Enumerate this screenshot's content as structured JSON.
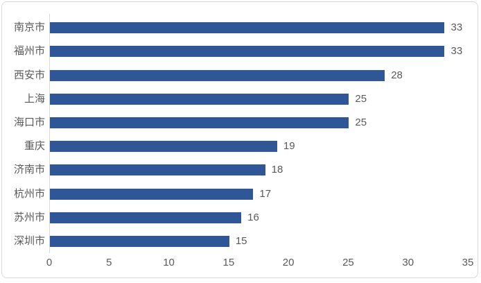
{
  "chart_data": {
    "type": "bar",
    "orientation": "horizontal",
    "title": "",
    "xlabel": "",
    "ylabel": "",
    "categories": [
      "南京市",
      "福州市",
      "西安市",
      "上海",
      "海口市",
      "重庆",
      "济南市",
      "杭州市",
      "苏州市",
      "深圳市"
    ],
    "values": [
      33,
      33,
      28,
      25,
      25,
      19,
      18,
      17,
      16,
      15
    ],
    "data_labels": [
      "33",
      "33",
      "28",
      "25",
      "25",
      "19",
      "18",
      "17",
      "16",
      "15"
    ],
    "x_ticks": [
      "0",
      "5",
      "10",
      "15",
      "20",
      "25",
      "30",
      "35"
    ],
    "x_tick_values": [
      0,
      5,
      10,
      15,
      20,
      25,
      30,
      35
    ],
    "xlim": [
      0,
      35
    ],
    "grid": false,
    "legend": "none",
    "colors": {
      "bar": "#2f5797",
      "text": "#595959",
      "axis_line": "#d9d9d9",
      "frame_border": "#d9d9d9",
      "background": "#ffffff"
    }
  }
}
